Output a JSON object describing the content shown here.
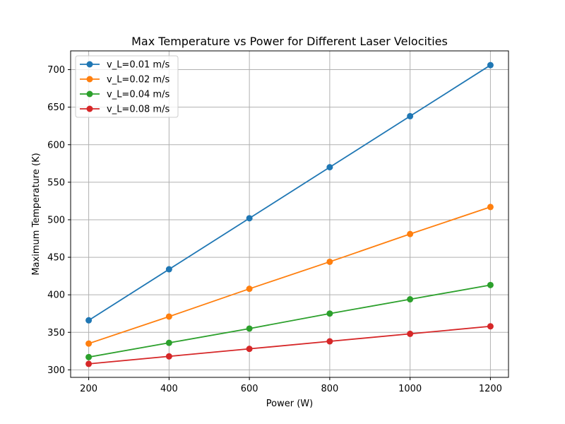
{
  "chart_data": {
    "type": "line",
    "title": "Max Temperature vs Power for Different Laser Velocities",
    "xlabel": "Power (W)",
    "ylabel": "Maximum Temperature (K)",
    "x": [
      200,
      400,
      600,
      800,
      1000,
      1200
    ],
    "xlim": [
      155,
      1245
    ],
    "ylim": [
      290,
      725
    ],
    "xticks": [
      200,
      400,
      600,
      800,
      1000,
      1200
    ],
    "yticks": [
      300,
      350,
      400,
      450,
      500,
      550,
      600,
      650,
      700
    ],
    "grid": true,
    "legend_position": "top-left",
    "series": [
      {
        "name": "v_L=0.01 m/s",
        "color": "#1f77b4",
        "values": [
          366,
          434,
          502,
          570,
          638,
          706
        ]
      },
      {
        "name": "v_L=0.02 m/s",
        "color": "#ff7f0e",
        "values": [
          335,
          371,
          408,
          444,
          481,
          517
        ]
      },
      {
        "name": "v_L=0.04 m/s",
        "color": "#2ca02c",
        "values": [
          317,
          336,
          355,
          375,
          394,
          413
        ]
      },
      {
        "name": "v_L=0.08 m/s",
        "color": "#d62728",
        "values": [
          308,
          318,
          328,
          338,
          348,
          358
        ]
      }
    ]
  }
}
